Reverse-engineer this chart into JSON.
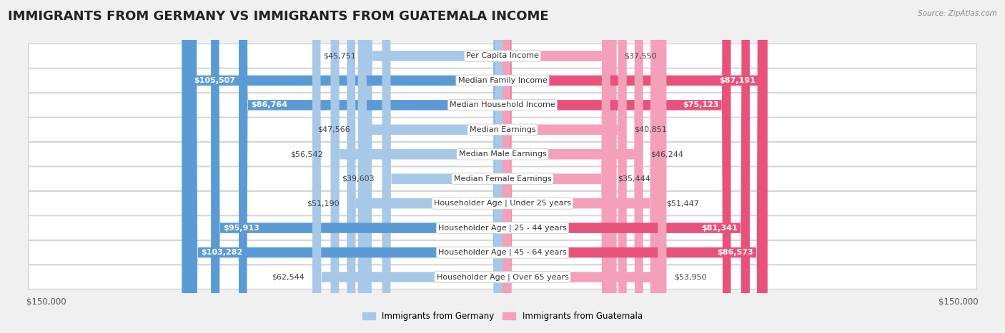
{
  "title": "IMMIGRANTS FROM GERMANY VS IMMIGRANTS FROM GUATEMALA INCOME",
  "source": "Source: ZipAtlas.com",
  "categories": [
    "Per Capita Income",
    "Median Family Income",
    "Median Household Income",
    "Median Earnings",
    "Median Male Earnings",
    "Median Female Earnings",
    "Householder Age | Under 25 years",
    "Householder Age | 25 - 44 years",
    "Householder Age | 45 - 64 years",
    "Householder Age | Over 65 years"
  ],
  "germany_values": [
    45751,
    105507,
    86764,
    47566,
    56542,
    39603,
    51190,
    95913,
    103282,
    62544
  ],
  "guatemala_values": [
    37550,
    87191,
    75123,
    40851,
    46244,
    35444,
    51447,
    81341,
    86573,
    53950
  ],
  "germany_color_light": "#a8c8e8",
  "germany_color_dark": "#5b9bd5",
  "guatemala_color_light": "#f4a0b8",
  "guatemala_color_dark": "#e8527a",
  "max_value": 150000,
  "germany_label": "Immigrants from Germany",
  "guatemala_label": "Immigrants from Guatemala",
  "background_color": "#f0f0f0",
  "row_bg_even": "#f0f0f0",
  "row_bg_odd": "#fafafa",
  "title_fontsize": 13,
  "label_fontsize": 8.0,
  "value_fontsize": 8.0,
  "xlim": 150000,
  "germany_dark_threshold": 85000,
  "guatemala_dark_threshold": 75000
}
